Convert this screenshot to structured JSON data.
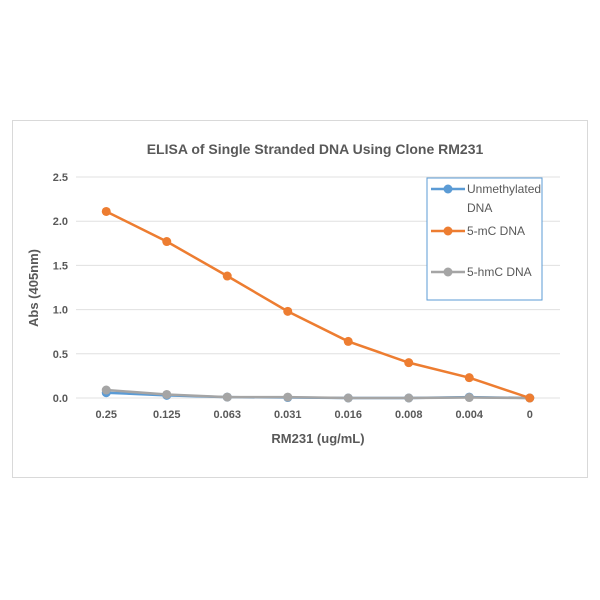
{
  "chart_data": {
    "type": "line",
    "title": "ELISA of Single Stranded DNA Using Clone RM231",
    "xlabel": "RM231  (ug/mL)",
    "ylabel": "Abs (405nm)",
    "categories": [
      "0.25",
      "0.125",
      "0.063",
      "0.031",
      "0.016",
      "0.008",
      "0.004",
      "0"
    ],
    "ylim": [
      0,
      2.5
    ],
    "yticks": [
      "0.0",
      "0.5",
      "1.0",
      "1.5",
      "2.0",
      "2.5"
    ],
    "grid": true,
    "legend_placement": "top-right",
    "series": [
      {
        "name": "Unmethylated DNA",
        "legend_lines": [
          "Unmethylated",
          "DNA"
        ],
        "color": "#5b9bd5",
        "values": [
          0.06,
          0.03,
          0.01,
          0.005,
          0.0,
          0.0,
          0.01,
          0.0
        ]
      },
      {
        "name": "5-mC DNA",
        "legend_lines": [
          "5-mC DNA"
        ],
        "color": "#ed7d31",
        "values": [
          2.11,
          1.77,
          1.38,
          0.98,
          0.64,
          0.4,
          0.23,
          0.0
        ]
      },
      {
        "name": "5-hmC DNA",
        "legend_lines": [
          "5-hmC DNA"
        ],
        "color": "#a5a5a5",
        "values": [
          0.09,
          0.04,
          0.01,
          0.01,
          0.0,
          0.0,
          0.005,
          0.0
        ]
      }
    ]
  }
}
